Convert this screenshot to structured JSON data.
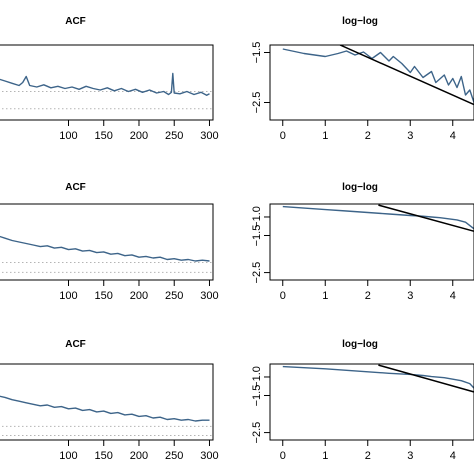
{
  "colors": {
    "series": "#3d6489",
    "fit": "#000000",
    "ref": "#b4b4b4",
    "frame": "#000000"
  },
  "chart_data": [
    {
      "type": "line",
      "panel": "acf-1",
      "title": "ACF",
      "xlim": [
        0,
        305
      ],
      "ylim": [
        0,
        1
      ],
      "grid": false,
      "xticks": [
        100,
        150,
        200,
        250,
        300
      ],
      "ref_lines": [
        0.38,
        0.15
      ],
      "series": [
        {
          "points": [
            [
              0,
              0.55
            ],
            [
              10,
              0.52
            ],
            [
              20,
              0.49
            ],
            [
              30,
              0.46
            ],
            [
              35,
              0.5
            ],
            [
              40,
              0.58
            ],
            [
              45,
              0.46
            ],
            [
              55,
              0.44
            ],
            [
              65,
              0.47
            ],
            [
              75,
              0.43
            ],
            [
              85,
              0.45
            ],
            [
              95,
              0.42
            ],
            [
              105,
              0.44
            ],
            [
              115,
              0.41
            ],
            [
              125,
              0.45
            ],
            [
              135,
              0.42
            ],
            [
              145,
              0.4
            ],
            [
              155,
              0.43
            ],
            [
              165,
              0.39
            ],
            [
              175,
              0.42
            ],
            [
              185,
              0.38
            ],
            [
              195,
              0.41
            ],
            [
              205,
              0.37
            ],
            [
              215,
              0.4
            ],
            [
              225,
              0.36
            ],
            [
              235,
              0.38
            ],
            [
              242,
              0.34
            ],
            [
              246,
              0.37
            ],
            [
              248,
              0.62
            ],
            [
              250,
              0.36
            ],
            [
              258,
              0.35
            ],
            [
              268,
              0.38
            ],
            [
              278,
              0.34
            ],
            [
              288,
              0.37
            ],
            [
              296,
              0.33
            ],
            [
              300,
              0.35
            ]
          ]
        }
      ]
    },
    {
      "type": "line",
      "panel": "loglog-1",
      "title": "log−log",
      "xlim": [
        -0.3,
        4.5
      ],
      "ylim": [
        -2.85,
        -1.35
      ],
      "grid": false,
      "xticks": [
        0,
        1,
        2,
        3,
        4
      ],
      "yticks": [
        {
          "value": -1.5,
          "label": "−1.5"
        },
        {
          "value": -2.5,
          "label": "−2.5"
        }
      ],
      "series": [
        {
          "points": [
            [
              0,
              -1.43
            ],
            [
              0.5,
              -1.52
            ],
            [
              1.0,
              -1.58
            ],
            [
              1.3,
              -1.52
            ],
            [
              1.5,
              -1.47
            ],
            [
              1.7,
              -1.55
            ],
            [
              1.9,
              -1.49
            ],
            [
              2.1,
              -1.62
            ],
            [
              2.3,
              -1.5
            ],
            [
              2.5,
              -1.67
            ],
            [
              2.6,
              -1.58
            ],
            [
              2.8,
              -1.72
            ],
            [
              3.0,
              -1.9
            ],
            [
              3.1,
              -1.78
            ],
            [
              3.3,
              -2.0
            ],
            [
              3.5,
              -1.88
            ],
            [
              3.6,
              -2.1
            ],
            [
              3.8,
              -1.95
            ],
            [
              3.9,
              -2.15
            ],
            [
              4.0,
              -2.02
            ],
            [
              4.1,
              -2.2
            ],
            [
              4.2,
              -1.98
            ],
            [
              4.3,
              -2.35
            ],
            [
              4.4,
              -2.25
            ],
            [
              4.5,
              -2.5
            ]
          ]
        },
        {
          "role": "fit",
          "points": [
            [
              1.35,
              -1.35
            ],
            [
              4.6,
              -2.58
            ]
          ]
        }
      ]
    },
    {
      "type": "line",
      "panel": "acf-2",
      "title": "ACF",
      "xlim": [
        0,
        305
      ],
      "ylim": [
        0,
        1
      ],
      "grid": false,
      "xticks": [
        100,
        150,
        200,
        250,
        300
      ],
      "ref_lines": [
        0.23,
        0.1
      ],
      "series": [
        {
          "points": [
            [
              0,
              0.58
            ],
            [
              10,
              0.55
            ],
            [
              20,
              0.52
            ],
            [
              30,
              0.5
            ],
            [
              40,
              0.48
            ],
            [
              50,
              0.46
            ],
            [
              60,
              0.44
            ],
            [
              70,
              0.45
            ],
            [
              80,
              0.42
            ],
            [
              90,
              0.43
            ],
            [
              100,
              0.4
            ],
            [
              110,
              0.41
            ],
            [
              120,
              0.38
            ],
            [
              130,
              0.39
            ],
            [
              140,
              0.36
            ],
            [
              150,
              0.37
            ],
            [
              160,
              0.34
            ],
            [
              170,
              0.35
            ],
            [
              180,
              0.32
            ],
            [
              190,
              0.33
            ],
            [
              200,
              0.3
            ],
            [
              210,
              0.31
            ],
            [
              220,
              0.29
            ],
            [
              230,
              0.3
            ],
            [
              240,
              0.27
            ],
            [
              250,
              0.28
            ],
            [
              260,
              0.26
            ],
            [
              270,
              0.27
            ],
            [
              280,
              0.25
            ],
            [
              290,
              0.26
            ],
            [
              300,
              0.25
            ]
          ]
        }
      ]
    },
    {
      "type": "line",
      "panel": "loglog-2",
      "title": "log−log",
      "xlim": [
        -0.3,
        4.5
      ],
      "ylim": [
        -2.7,
        -0.65
      ],
      "grid": false,
      "xticks": [
        0,
        1,
        2,
        3,
        4
      ],
      "yticks": [
        {
          "value": -1.0,
          "label": "−1.0"
        },
        {
          "value": -1.5,
          "label": "−1.5"
        },
        {
          "value": -2.5,
          "label": "−2.5"
        }
      ],
      "series": [
        {
          "points": [
            [
              0,
              -0.72
            ],
            [
              0.5,
              -0.76
            ],
            [
              1.0,
              -0.8
            ],
            [
              1.5,
              -0.84
            ],
            [
              2.0,
              -0.88
            ],
            [
              2.5,
              -0.92
            ],
            [
              3.0,
              -0.96
            ],
            [
              3.3,
              -0.98
            ],
            [
              3.5,
              -1.0
            ],
            [
              3.7,
              -1.02
            ],
            [
              3.9,
              -1.05
            ],
            [
              4.1,
              -1.08
            ],
            [
              4.3,
              -1.14
            ],
            [
              4.5,
              -1.32
            ]
          ]
        },
        {
          "role": "fit",
          "points": [
            [
              2.25,
              -0.68
            ],
            [
              4.55,
              -1.4
            ]
          ]
        }
      ]
    },
    {
      "type": "line",
      "panel": "acf-3",
      "title": "ACF",
      "xlim": [
        0,
        305
      ],
      "ylim": [
        0,
        1
      ],
      "grid": false,
      "xticks": [
        100,
        150,
        200,
        250,
        300
      ],
      "ref_lines": [
        0.18,
        0.06
      ],
      "series": [
        {
          "points": [
            [
              0,
              0.58
            ],
            [
              10,
              0.56
            ],
            [
              20,
              0.53
            ],
            [
              30,
              0.51
            ],
            [
              40,
              0.49
            ],
            [
              50,
              0.47
            ],
            [
              60,
              0.45
            ],
            [
              70,
              0.46
            ],
            [
              80,
              0.43
            ],
            [
              90,
              0.44
            ],
            [
              100,
              0.41
            ],
            [
              110,
              0.42
            ],
            [
              120,
              0.39
            ],
            [
              130,
              0.4
            ],
            [
              140,
              0.37
            ],
            [
              150,
              0.38
            ],
            [
              160,
              0.35
            ],
            [
              170,
              0.36
            ],
            [
              180,
              0.33
            ],
            [
              190,
              0.34
            ],
            [
              200,
              0.31
            ],
            [
              210,
              0.32
            ],
            [
              220,
              0.29
            ],
            [
              230,
              0.3
            ],
            [
              240,
              0.27
            ],
            [
              250,
              0.28
            ],
            [
              260,
              0.26
            ],
            [
              270,
              0.27
            ],
            [
              280,
              0.25
            ],
            [
              290,
              0.26
            ],
            [
              300,
              0.26
            ]
          ]
        }
      ]
    },
    {
      "type": "line",
      "panel": "loglog-3",
      "title": "log−log",
      "xlim": [
        -0.3,
        4.5
      ],
      "ylim": [
        -2.7,
        -0.65
      ],
      "grid": false,
      "xticks": [
        0,
        1,
        2,
        3,
        4
      ],
      "yticks": [
        {
          "value": -1.0,
          "label": "−1.0"
        },
        {
          "value": -1.5,
          "label": "−1.5"
        },
        {
          "value": -2.5,
          "label": "−2.5"
        }
      ],
      "series": [
        {
          "points": [
            [
              0,
              -0.72
            ],
            [
              0.5,
              -0.75
            ],
            [
              1.0,
              -0.78
            ],
            [
              1.5,
              -0.82
            ],
            [
              2.0,
              -0.86
            ],
            [
              2.5,
              -0.9
            ],
            [
              3.0,
              -0.93
            ],
            [
              3.3,
              -0.96
            ],
            [
              3.5,
              -0.99
            ],
            [
              3.8,
              -1.02
            ],
            [
              4.0,
              -1.06
            ],
            [
              4.2,
              -1.1
            ],
            [
              4.4,
              -1.18
            ],
            [
              4.5,
              -1.3
            ]
          ]
        },
        {
          "role": "fit",
          "points": [
            [
              2.25,
              -0.68
            ],
            [
              4.55,
              -1.42
            ]
          ]
        }
      ]
    }
  ]
}
